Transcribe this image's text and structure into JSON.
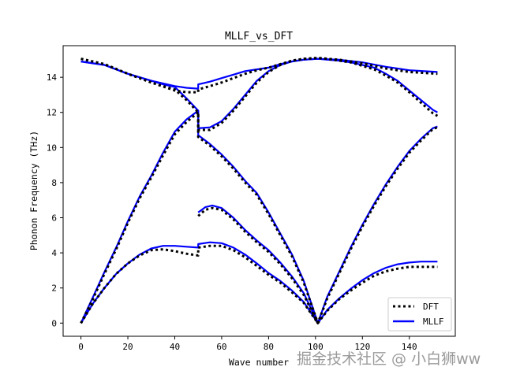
{
  "chart_data": {
    "type": "line",
    "title": "MLLF_vs_DFT",
    "xlabel": "Wave number",
    "ylabel": "Phonon Frequency (THz)",
    "xlim": [
      -7.6,
      159.6
    ],
    "ylim": [
      -0.75,
      15.8
    ],
    "xticks": [
      0,
      20,
      40,
      60,
      80,
      100,
      120,
      140
    ],
    "yticks": [
      0,
      2,
      4,
      6,
      8,
      10,
      12,
      14
    ],
    "grid": false,
    "legend_position": "lower-right",
    "series": [
      {
        "name": "DFT",
        "color": "#000000",
        "style": "dotted",
        "branches": [
          [
            [
              0,
              0
            ],
            [
              5,
              1.1
            ],
            [
              10,
              2.0
            ],
            [
              15,
              2.8
            ],
            [
              20,
              3.4
            ],
            [
              25,
              3.85
            ],
            [
              30,
              4.15
            ],
            [
              35,
              4.2
            ],
            [
              40,
              4.1
            ],
            [
              45,
              3.95
            ],
            [
              50,
              3.85
            ],
            [
              50,
              4.3
            ],
            [
              55,
              4.4
            ],
            [
              60,
              4.4
            ],
            [
              65,
              4.15
            ],
            [
              70,
              3.75
            ],
            [
              75,
              3.25
            ],
            [
              80,
              2.75
            ],
            [
              85,
              2.3
            ],
            [
              90,
              1.75
            ],
            [
              95,
              1.15
            ],
            [
              101,
              0
            ],
            [
              105,
              0.7
            ],
            [
              110,
              1.35
            ],
            [
              115,
              1.85
            ],
            [
              120,
              2.3
            ],
            [
              125,
              2.7
            ],
            [
              130,
              2.95
            ],
            [
              135,
              3.1
            ],
            [
              140,
              3.2
            ],
            [
              145,
              3.2
            ],
            [
              152,
              3.2
            ]
          ],
          [
            [
              0,
              0
            ],
            [
              5,
              1.35
            ],
            [
              10,
              2.8
            ],
            [
              15,
              4.2
            ],
            [
              20,
              5.7
            ],
            [
              25,
              7.1
            ],
            [
              30,
              8.3
            ],
            [
              35,
              9.55
            ],
            [
              40,
              10.75
            ],
            [
              45,
              11.45
            ],
            [
              50,
              12.0
            ],
            [
              50,
              10.6
            ],
            [
              55,
              10.1
            ],
            [
              60,
              9.5
            ],
            [
              65,
              8.8
            ],
            [
              70,
              8.0
            ],
            [
              75,
              7.3
            ],
            [
              80,
              6.2
            ],
            [
              85,
              5.0
            ],
            [
              90,
              3.8
            ],
            [
              95,
              2.3
            ],
            [
              101,
              0
            ],
            [
              105,
              1.4
            ],
            [
              110,
              2.8
            ],
            [
              115,
              4.2
            ],
            [
              120,
              5.5
            ],
            [
              125,
              6.7
            ],
            [
              130,
              7.8
            ],
            [
              135,
              8.8
            ],
            [
              140,
              9.7
            ],
            [
              145,
              10.4
            ],
            [
              150,
              11.05
            ],
            [
              152,
              11.15
            ]
          ],
          [
            [
              50,
              6.1
            ],
            [
              53,
              6.45
            ],
            [
              56,
              6.55
            ],
            [
              60,
              6.45
            ],
            [
              65,
              5.9
            ],
            [
              70,
              5.2
            ],
            [
              75,
              4.6
            ],
            [
              80,
              4.05
            ],
            [
              85,
              3.35
            ],
            [
              90,
              2.55
            ],
            [
              95,
              1.6
            ],
            [
              101,
              0
            ]
          ],
          [
            [
              0,
              15.05
            ],
            [
              10,
              14.75
            ],
            [
              20,
              14.2
            ],
            [
              30,
              13.7
            ],
            [
              35,
              13.5
            ],
            [
              40,
              13.3
            ],
            [
              45,
              12.7
            ],
            [
              50,
              12.0
            ],
            [
              50,
              11.0
            ],
            [
              55,
              11.0
            ],
            [
              60,
              11.4
            ],
            [
              65,
              12.1
            ],
            [
              70,
              12.9
            ],
            [
              75,
              13.7
            ],
            [
              80,
              14.3
            ],
            [
              85,
              14.7
            ],
            [
              90,
              14.95
            ],
            [
              95,
              15.05
            ],
            [
              101,
              15.1
            ],
            [
              105,
              15.05
            ],
            [
              110,
              14.95
            ],
            [
              115,
              14.85
            ],
            [
              120,
              14.65
            ],
            [
              125,
              14.45
            ],
            [
              130,
              14.1
            ],
            [
              135,
              13.7
            ],
            [
              140,
              13.15
            ],
            [
              145,
              12.55
            ],
            [
              150,
              11.95
            ],
            [
              152,
              11.8
            ]
          ],
          [
            [
              0,
              15.05
            ],
            [
              10,
              14.75
            ],
            [
              20,
              14.2
            ],
            [
              30,
              13.7
            ],
            [
              40,
              13.25
            ],
            [
              45,
              13.15
            ],
            [
              50,
              13.15
            ],
            [
              50,
              13.3
            ],
            [
              55,
              13.5
            ],
            [
              60,
              13.7
            ],
            [
              65,
              13.95
            ],
            [
              70,
              14.2
            ],
            [
              75,
              14.4
            ],
            [
              80,
              14.55
            ],
            [
              85,
              14.75
            ],
            [
              90,
              14.95
            ],
            [
              95,
              15.05
            ],
            [
              101,
              15.1
            ],
            [
              110,
              15.0
            ],
            [
              120,
              14.8
            ],
            [
              130,
              14.5
            ],
            [
              140,
              14.3
            ],
            [
              152,
              14.2
            ]
          ]
        ]
      },
      {
        "name": "MLLF",
        "color": "#0000ff",
        "style": "solid",
        "branches": [
          [
            [
              0,
              0
            ],
            [
              5,
              1.1
            ],
            [
              10,
              2.0
            ],
            [
              15,
              2.8
            ],
            [
              20,
              3.4
            ],
            [
              25,
              3.9
            ],
            [
              30,
              4.25
            ],
            [
              35,
              4.4
            ],
            [
              40,
              4.4
            ],
            [
              45,
              4.35
            ],
            [
              50,
              4.3
            ],
            [
              50,
              4.5
            ],
            [
              55,
              4.6
            ],
            [
              60,
              4.55
            ],
            [
              65,
              4.3
            ],
            [
              70,
              3.9
            ],
            [
              75,
              3.4
            ],
            [
              80,
              2.85
            ],
            [
              85,
              2.4
            ],
            [
              90,
              1.85
            ],
            [
              95,
              1.2
            ],
            [
              101,
              0
            ],
            [
              105,
              0.75
            ],
            [
              110,
              1.4
            ],
            [
              115,
              1.95
            ],
            [
              120,
              2.45
            ],
            [
              125,
              2.85
            ],
            [
              130,
              3.15
            ],
            [
              135,
              3.35
            ],
            [
              140,
              3.45
            ],
            [
              145,
              3.5
            ],
            [
              152,
              3.5
            ]
          ],
          [
            [
              0,
              0
            ],
            [
              5,
              1.45
            ],
            [
              10,
              2.9
            ],
            [
              15,
              4.3
            ],
            [
              20,
              5.8
            ],
            [
              25,
              7.2
            ],
            [
              30,
              8.4
            ],
            [
              35,
              9.7
            ],
            [
              40,
              10.9
            ],
            [
              45,
              11.6
            ],
            [
              50,
              12.1
            ],
            [
              50,
              10.7
            ],
            [
              55,
              10.2
            ],
            [
              60,
              9.6
            ],
            [
              65,
              8.9
            ],
            [
              70,
              8.1
            ],
            [
              75,
              7.4
            ],
            [
              80,
              6.3
            ],
            [
              85,
              5.1
            ],
            [
              90,
              3.9
            ],
            [
              95,
              2.4
            ],
            [
              101,
              0
            ],
            [
              105,
              1.5
            ],
            [
              110,
              2.9
            ],
            [
              115,
              4.3
            ],
            [
              120,
              5.6
            ],
            [
              125,
              6.8
            ],
            [
              130,
              7.9
            ],
            [
              135,
              8.9
            ],
            [
              140,
              9.8
            ],
            [
              145,
              10.5
            ],
            [
              150,
              11.1
            ],
            [
              152,
              11.2
            ]
          ],
          [
            [
              50,
              6.3
            ],
            [
              53,
              6.6
            ],
            [
              56,
              6.7
            ],
            [
              60,
              6.55
            ],
            [
              65,
              6.0
            ],
            [
              70,
              5.3
            ],
            [
              75,
              4.7
            ],
            [
              80,
              4.15
            ],
            [
              85,
              3.45
            ],
            [
              90,
              2.65
            ],
            [
              95,
              1.7
            ],
            [
              101,
              0
            ]
          ],
          [
            [
              0,
              14.9
            ],
            [
              10,
              14.7
            ],
            [
              20,
              14.2
            ],
            [
              30,
              13.8
            ],
            [
              35,
              13.6
            ],
            [
              40,
              13.45
            ],
            [
              45,
              12.8
            ],
            [
              50,
              12.1
            ],
            [
              50,
              11.1
            ],
            [
              55,
              11.15
            ],
            [
              60,
              11.5
            ],
            [
              65,
              12.2
            ],
            [
              70,
              13.0
            ],
            [
              75,
              13.8
            ],
            [
              80,
              14.35
            ],
            [
              85,
              14.7
            ],
            [
              90,
              14.9
            ],
            [
              95,
              15.0
            ],
            [
              101,
              15.05
            ],
            [
              105,
              15.0
            ],
            [
              110,
              14.95
            ],
            [
              115,
              14.85
            ],
            [
              120,
              14.7
            ],
            [
              125,
              14.55
            ],
            [
              130,
              14.2
            ],
            [
              135,
              13.8
            ],
            [
              140,
              13.25
            ],
            [
              145,
              12.7
            ],
            [
              150,
              12.15
            ],
            [
              152,
              12.0
            ]
          ],
          [
            [
              0,
              14.9
            ],
            [
              10,
              14.7
            ],
            [
              20,
              14.2
            ],
            [
              30,
              13.8
            ],
            [
              40,
              13.5
            ],
            [
              45,
              13.4
            ],
            [
              50,
              13.35
            ],
            [
              50,
              13.6
            ],
            [
              55,
              13.75
            ],
            [
              60,
              13.95
            ],
            [
              65,
              14.15
            ],
            [
              70,
              14.35
            ],
            [
              75,
              14.45
            ],
            [
              80,
              14.55
            ],
            [
              85,
              14.75
            ],
            [
              90,
              14.9
            ],
            [
              95,
              15.0
            ],
            [
              101,
              15.05
            ],
            [
              110,
              15.0
            ],
            [
              120,
              14.85
            ],
            [
              130,
              14.6
            ],
            [
              140,
              14.4
            ],
            [
              152,
              14.3
            ]
          ]
        ]
      }
    ]
  },
  "watermark": "掘金技术社区 @ 小白狮ww"
}
